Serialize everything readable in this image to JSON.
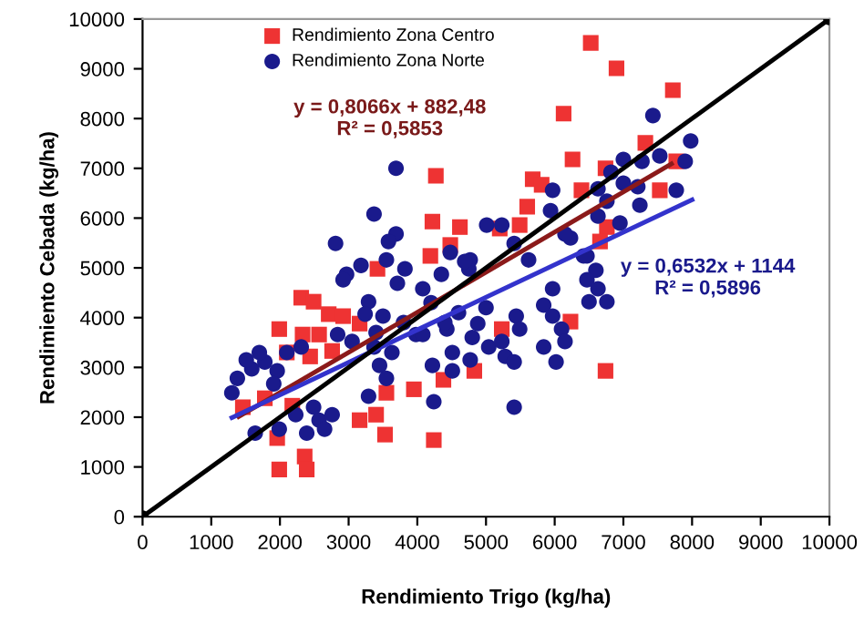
{
  "chart_data": {
    "type": "scatter",
    "xlabel": "Rendimiento Trigo (kg/ha)",
    "ylabel": "Rendimiento Cebada (kg/ha)",
    "xlim": [
      0,
      10000
    ],
    "ylim": [
      0,
      10000
    ],
    "xticks": [
      0,
      1000,
      2000,
      3000,
      4000,
      5000,
      6000,
      7000,
      8000,
      9000,
      10000
    ],
    "yticks": [
      0,
      1000,
      2000,
      3000,
      4000,
      5000,
      6000,
      7000,
      8000,
      9000,
      10000
    ],
    "grid": false,
    "legend": "top left",
    "annotations": [
      "y = 0,8066x + 882,48\nR² = 0,5853",
      "y = 0,6532x + 1144\nR² = 0,5896"
    ],
    "series": [
      {
        "name": "Rendimiento Zona Centro",
        "marker": "square",
        "color": "#ee3333",
        "x": [
          6525,
          6900,
          7720,
          6130,
          4270,
          4220,
          4620,
          4480,
          4190,
          3420,
          6260,
          7320,
          6740,
          7770,
          5680,
          5810,
          6390,
          5600,
          5490,
          5200,
          7530,
          6760,
          6660,
          2310,
          2490,
          1990,
          2330,
          2710,
          2920,
          3160,
          2570,
          2100,
          2440,
          2760,
          1460,
          1780,
          3950,
          4380,
          3550,
          3160,
          3400,
          3530,
          4240,
          1960,
          2360,
          2390,
          1990,
          2180,
          4830,
          6740,
          6230,
          5230
        ],
        "values": [
          9520,
          9010,
          8570,
          8100,
          6850,
          5930,
          5820,
          5460,
          5240,
          4980,
          7180,
          7510,
          7000,
          7140,
          6780,
          6670,
          6560,
          6230,
          5860,
          5790,
          6560,
          5820,
          5530,
          4400,
          4320,
          3770,
          3660,
          4070,
          4030,
          3880,
          3660,
          3300,
          3220,
          3330,
          2200,
          2380,
          2560,
          2750,
          2490,
          1940,
          2050,
          1650,
          1540,
          1580,
          1210,
          950,
          950,
          2230,
          2930,
          2930,
          3920,
          3770
        ]
      },
      {
        "name": "Rendimiento Zona Norte",
        "marker": "circle",
        "color": "#1a1a8c",
        "x": [
          3690,
          3370,
          2810,
          3690,
          3580,
          3550,
          3180,
          2970,
          5010,
          4480,
          4770,
          7430,
          7980,
          7000,
          7270,
          7530,
          7900,
          6820,
          5970,
          6630,
          7000,
          7210,
          7770,
          7240,
          5940,
          6760,
          6630,
          6950,
          6230,
          6150,
          5230,
          5410,
          6470,
          5620,
          6600,
          2920,
          3820,
          3710,
          4080,
          4350,
          4750,
          3290,
          3240,
          3500,
          2840,
          3050,
          3370,
          3630,
          3450,
          3550,
          3290,
          4240,
          2490,
          2570,
          2230,
          2760,
          2390,
          2650,
          1640,
          1990,
          1300,
          1380,
          1590,
          1780,
          1960,
          1700,
          2100,
          2310,
          1510,
          1910,
          3980,
          4430,
          4880,
          4510,
          4770,
          5040,
          4220,
          4510,
          4690,
          4080,
          6420,
          6470,
          6630,
          6760,
          6500,
          5970,
          5840,
          5970,
          6100,
          6150,
          5840,
          6020,
          5440,
          5490,
          5230,
          5280,
          5410,
          5410,
          4200,
          4600,
          5000,
          4400,
          4800,
          3800,
          3400
        ],
        "values": [
          7000,
          6080,
          5490,
          5680,
          5530,
          5160,
          5050,
          4870,
          5860,
          5310,
          5160,
          8060,
          7550,
          7180,
          7140,
          7250,
          7140,
          6920,
          6560,
          6590,
          6700,
          6630,
          6560,
          6260,
          6150,
          6340,
          6040,
          5900,
          5600,
          5680,
          5860,
          5490,
          5240,
          5160,
          4950,
          4760,
          4980,
          4690,
          4580,
          4870,
          4980,
          4320,
          4070,
          4030,
          3660,
          3520,
          3410,
          3300,
          3040,
          2780,
          2420,
          2310,
          2200,
          1940,
          2050,
          2050,
          1680,
          1760,
          1680,
          1760,
          2490,
          2780,
          2970,
          3110,
          2930,
          3300,
          3300,
          3410,
          3150,
          2670,
          3660,
          3770,
          3880,
          3300,
          3150,
          3410,
          3040,
          2930,
          5130,
          3660,
          5240,
          4760,
          4580,
          4320,
          4320,
          4580,
          4250,
          4030,
          3770,
          3520,
          3410,
          3110,
          4030,
          3770,
          3520,
          3220,
          3110,
          2200,
          4300,
          4100,
          4200,
          3900,
          3600,
          3900,
          3700
        ]
      },
      {
        "type": "line",
        "color": "#8b1a1a",
        "x": [
          1400,
          7700
        ],
        "values": [
          2010,
          7090
        ]
      },
      {
        "type": "line",
        "color": "#3333cc",
        "x": [
          1300,
          8000
        ],
        "values": [
          1990,
          6370
        ]
      },
      {
        "type": "line",
        "color": "#000000",
        "marker": "circle",
        "x": [
          0,
          10000
        ],
        "values": [
          0,
          10000
        ]
      }
    ]
  }
}
